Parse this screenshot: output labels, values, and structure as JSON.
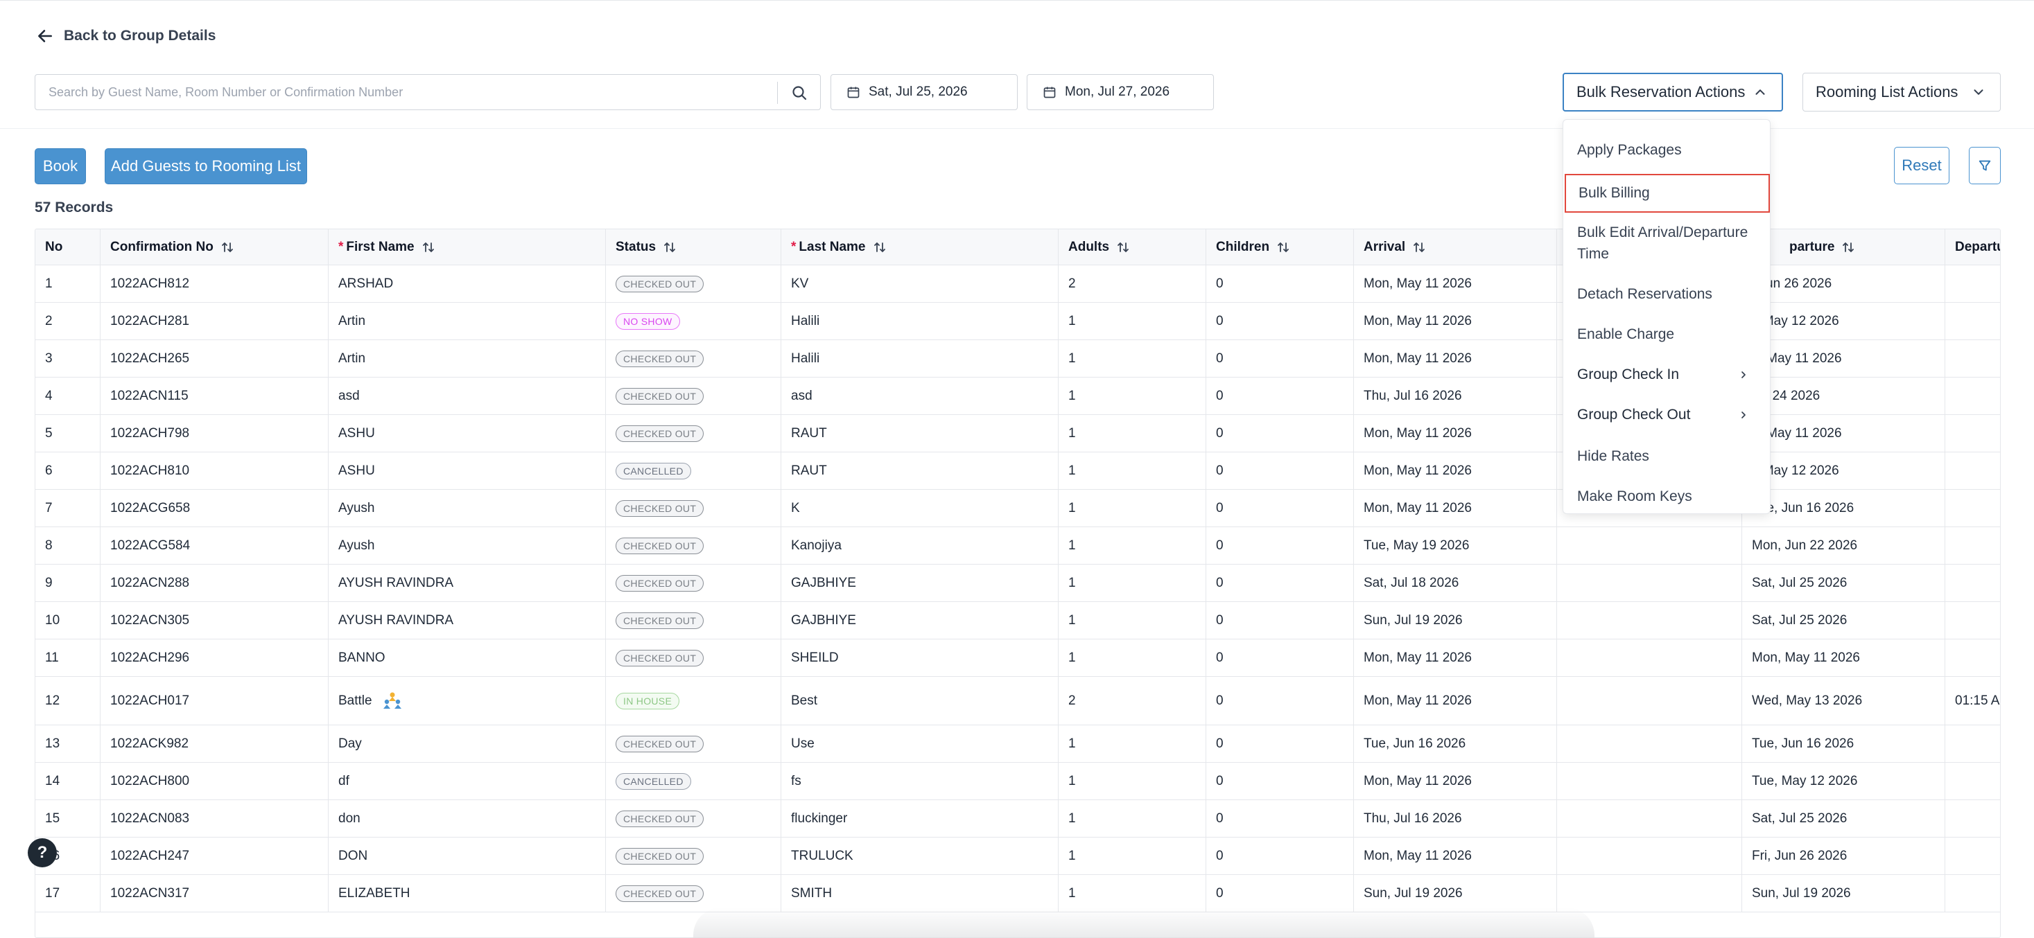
{
  "back_link": {
    "label": "Back to Group Details"
  },
  "search": {
    "placeholder": "Search by Guest Name, Room Number or Confirmation Number",
    "value": ""
  },
  "dates": {
    "arrival": "Sat, Jul 25, 2026",
    "departure": "Mon, Jul 27, 2026"
  },
  "actions": {
    "bulk_reservation": "Bulk Reservation Actions",
    "rooming_list": "Rooming List Actions",
    "book": "Book",
    "add_guests": "Add Guests to Rooming List",
    "reset": "Reset"
  },
  "records_count": "57 Records",
  "dropdown": {
    "items": [
      "Apply Packages",
      "Bulk Billing",
      "Bulk Edit Arrival/Departure Time",
      "Detach Reservations",
      "Enable Charge",
      "Group Check In",
      "Group Check Out",
      "Hide Rates",
      "Make Room Keys"
    ],
    "highlighted": "Bulk Billing"
  },
  "table": {
    "columns": [
      "No",
      "Confirmation No",
      "First Name",
      "Status",
      "Last Name",
      "Adults",
      "Children",
      "Arrival",
      "",
      "Departure",
      "Departu"
    ],
    "departure_header_visible": "parture",
    "rows": [
      {
        "no": "1",
        "conf": "1022ACH812",
        "first": "ARSHAD",
        "status": "CHECKED OUT",
        "last": "KV",
        "adults": "2",
        "children": "0",
        "arrival": "Mon, May 11 2026",
        "departure": ", Jun 26 2026",
        "dep_time": ""
      },
      {
        "no": "2",
        "conf": "1022ACH281",
        "first": "Artin",
        "status": "NO SHOW",
        "last": "Halili",
        "adults": "1",
        "children": "0",
        "arrival": "Mon, May 11 2026",
        "departure": "., May 12 2026",
        "dep_time": ""
      },
      {
        "no": "3",
        "conf": "1022ACH265",
        "first": "Artin",
        "status": "CHECKED OUT",
        "last": "Halili",
        "adults": "1",
        "children": "0",
        "arrival": "Mon, May 11 2026",
        "departure": "n, May 11 2026",
        "dep_time": ""
      },
      {
        "no": "4",
        "conf": "1022ACN115",
        "first": "asd",
        "status": "CHECKED OUT",
        "last": "asd",
        "adults": "1",
        "children": "0",
        "arrival": "Thu, Jul 16 2026",
        "departure": "Jul 24 2026",
        "dep_time": ""
      },
      {
        "no": "5",
        "conf": "1022ACH798",
        "first": "ASHU",
        "status": "CHECKED OUT",
        "last": "RAUT",
        "adults": "1",
        "children": "0",
        "arrival": "Mon, May 11 2026",
        "departure": "n, May 11 2026",
        "dep_time": ""
      },
      {
        "no": "6",
        "conf": "1022ACH810",
        "first": "ASHU",
        "status": "CANCELLED",
        "last": "RAUT",
        "adults": "1",
        "children": "0",
        "arrival": "Mon, May 11 2026",
        "departure": "., May 12 2026",
        "dep_time": ""
      },
      {
        "no": "7",
        "conf": "1022ACG658",
        "first": "Ayush",
        "status": "CHECKED OUT",
        "last": "K",
        "adults": "1",
        "children": "0",
        "arrival": "Mon, May 11 2026",
        "departure": "Tue, Jun 16 2026",
        "dep_time": ""
      },
      {
        "no": "8",
        "conf": "1022ACG584",
        "first": "Ayush",
        "status": "CHECKED OUT",
        "last": "Kanojiya",
        "adults": "1",
        "children": "0",
        "arrival": "Tue, May 19 2026",
        "departure": "Mon, Jun 22 2026",
        "dep_time": ""
      },
      {
        "no": "9",
        "conf": "1022ACN288",
        "first": "AYUSH RAVINDRA",
        "status": "CHECKED OUT",
        "last": "GAJBHIYE",
        "adults": "1",
        "children": "0",
        "arrival": "Sat, Jul 18 2026",
        "departure": "Sat, Jul 25 2026",
        "dep_time": ""
      },
      {
        "no": "10",
        "conf": "1022ACN305",
        "first": "AYUSH RAVINDRA",
        "status": "CHECKED OUT",
        "last": "GAJBHIYE",
        "adults": "1",
        "children": "0",
        "arrival": "Sun, Jul 19 2026",
        "departure": "Sat, Jul 25 2026",
        "dep_time": ""
      },
      {
        "no": "11",
        "conf": "1022ACH296",
        "first": "BANNO",
        "status": "CHECKED OUT",
        "last": "SHEILD",
        "adults": "1",
        "children": "0",
        "arrival": "Mon, May 11 2026",
        "departure": "Mon, May 11 2026",
        "dep_time": ""
      },
      {
        "no": "12",
        "conf": "1022ACH017",
        "first": "Battle",
        "status": "IN HOUSE",
        "last": "Best",
        "adults": "2",
        "children": "0",
        "arrival": "Mon, May 11 2026",
        "departure": "Wed, May 13 2026",
        "dep_time": "01:15 A"
      },
      {
        "no": "13",
        "conf": "1022ACK982",
        "first": "Day",
        "status": "CHECKED OUT",
        "last": "Use",
        "adults": "1",
        "children": "0",
        "arrival": "Tue, Jun 16 2026",
        "departure": "Tue, Jun 16 2026",
        "dep_time": ""
      },
      {
        "no": "14",
        "conf": "1022ACH800",
        "first": "df",
        "status": "CANCELLED",
        "last": "fs",
        "adults": "1",
        "children": "0",
        "arrival": "Mon, May 11 2026",
        "departure": "Tue, May 12 2026",
        "dep_time": ""
      },
      {
        "no": "15",
        "conf": "1022ACN083",
        "first": "don",
        "status": "CHECKED OUT",
        "last": "fluckinger",
        "adults": "1",
        "children": "0",
        "arrival": "Thu, Jul 16 2026",
        "departure": "Sat, Jul 25 2026",
        "dep_time": ""
      },
      {
        "no": "16",
        "conf": "1022ACH247",
        "first": "DON",
        "status": "CHECKED OUT",
        "last": "TRULUCK",
        "adults": "1",
        "children": "0",
        "arrival": "Mon, May 11 2026",
        "departure": "Fri, Jun 26 2026",
        "dep_time": ""
      },
      {
        "no": "17",
        "conf": "1022ACN317",
        "first": "ELIZABETH",
        "status": "CHECKED OUT",
        "last": "SMITH",
        "adults": "1",
        "children": "0",
        "arrival": "Sun, Jul 19 2026",
        "departure": "Sun, Jul 19 2026",
        "dep_time": ""
      }
    ]
  },
  "colors": {
    "primary": "#4a93d0",
    "highlight_border": "#e2483d",
    "noshow": "#d946ef",
    "inhouse": "#8dc785"
  },
  "icons": [
    "arrow-left-icon",
    "search-icon",
    "calendar-icon",
    "chevron-up-icon",
    "chevron-down-icon",
    "filter-icon",
    "sort-icon",
    "chevron-right-icon",
    "group-icon",
    "help-icon"
  ]
}
